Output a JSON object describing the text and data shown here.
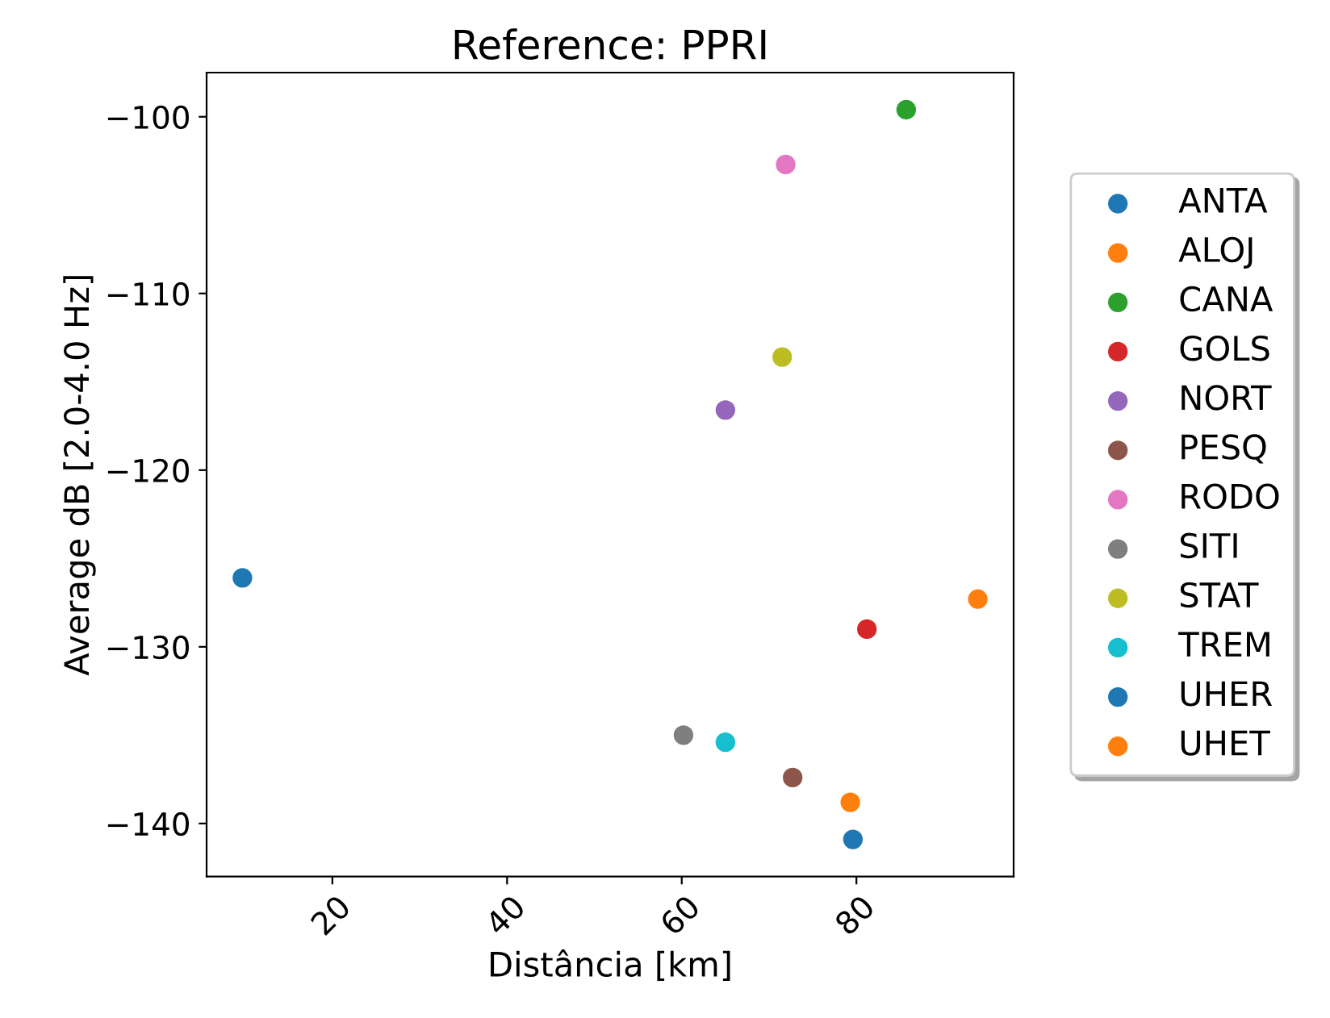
{
  "chart_data": {
    "type": "scatter",
    "title": "Reference: PPRI",
    "xlabel": "Distância [km]",
    "ylabel": "Average dB [2.0-4.0 Hz]",
    "xlim": [
      5.6,
      98.0
    ],
    "ylim": [
      -143.0,
      -97.5
    ],
    "xticks": [
      20,
      40,
      60,
      80
    ],
    "yticks": [
      -100,
      -110,
      -120,
      -130,
      -140
    ],
    "legend": "right",
    "marker": "circle",
    "grid": false,
    "series": [
      {
        "name": "ANTA",
        "color": "#1f77b4",
        "x": [
          9.7
        ],
        "values": [
          -126.1
        ]
      },
      {
        "name": "ALOJ",
        "color": "#ff7f0e",
        "x": [
          93.9
        ],
        "values": [
          -127.3
        ]
      },
      {
        "name": "CANA",
        "color": "#2ca02c",
        "x": [
          85.7
        ],
        "values": [
          -99.6
        ]
      },
      {
        "name": "GOLS",
        "color": "#d62728",
        "x": [
          81.2
        ],
        "values": [
          -129.0
        ]
      },
      {
        "name": "NORT",
        "color": "#9467bd",
        "x": [
          65.0
        ],
        "values": [
          -116.6
        ]
      },
      {
        "name": "PESQ",
        "color": "#8c564b",
        "x": [
          72.7
        ],
        "values": [
          -137.4
        ]
      },
      {
        "name": "RODO",
        "color": "#e377c2",
        "x": [
          71.9
        ],
        "values": [
          -102.7
        ]
      },
      {
        "name": "SITI",
        "color": "#7f7f7f",
        "x": [
          60.2
        ],
        "values": [
          -135.0
        ]
      },
      {
        "name": "STAT",
        "color": "#bcbd22",
        "x": [
          71.5
        ],
        "values": [
          -113.6
        ]
      },
      {
        "name": "TREM",
        "color": "#17becf",
        "x": [
          65.0
        ],
        "values": [
          -135.4
        ]
      },
      {
        "name": "UHER",
        "color": "#1f77b4",
        "x": [
          79.6
        ],
        "values": [
          -140.9
        ]
      },
      {
        "name": "UHET",
        "color": "#ff7f0e",
        "x": [
          79.3
        ],
        "values": [
          -138.8
        ]
      }
    ]
  }
}
